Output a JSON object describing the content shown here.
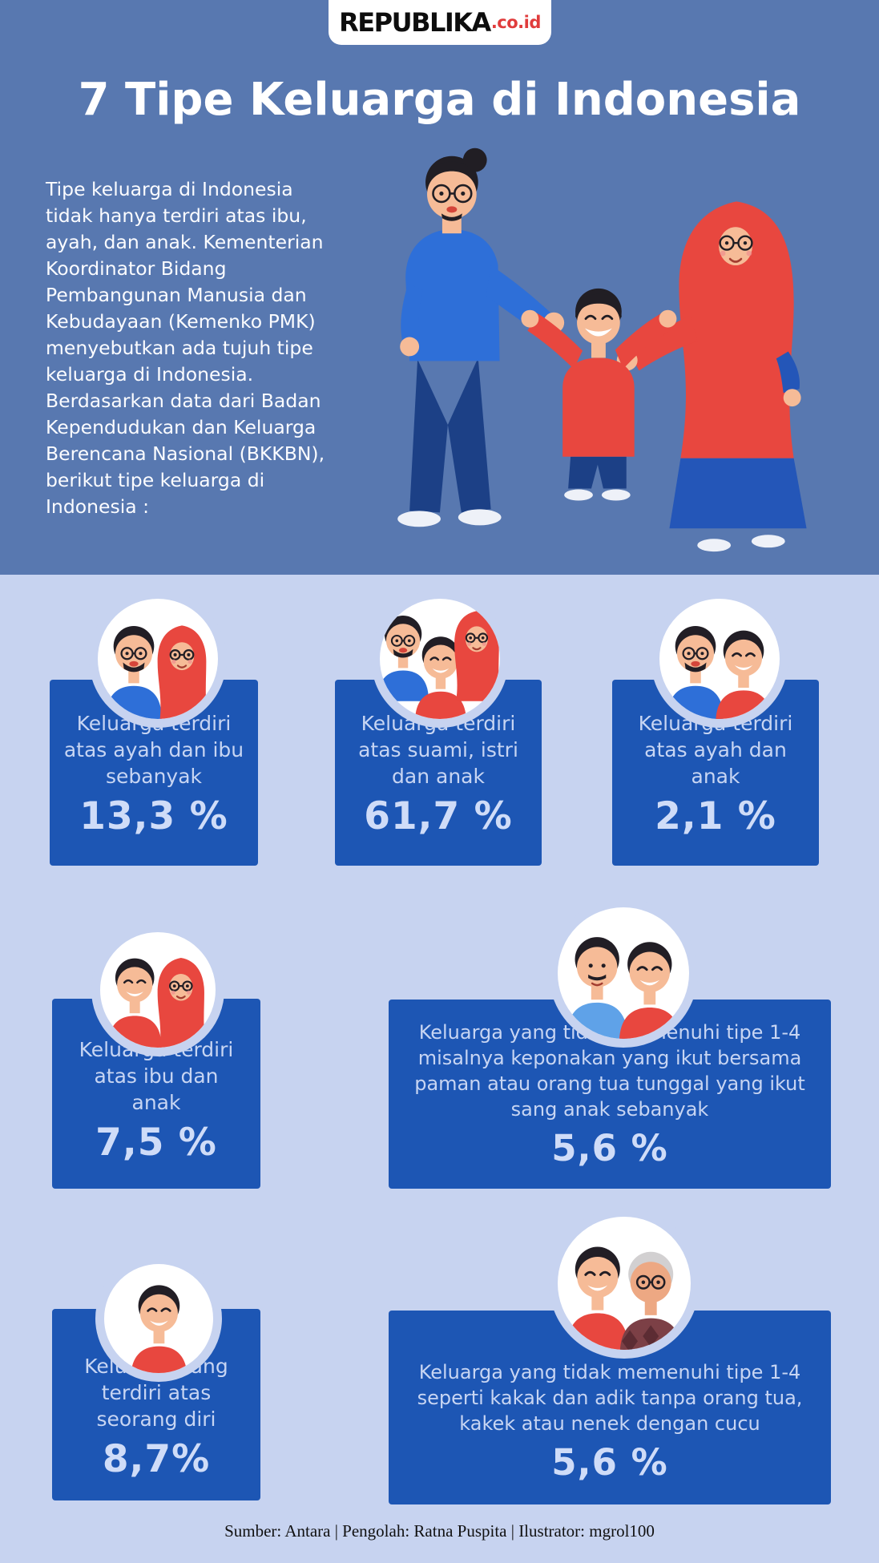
{
  "brand": {
    "name": "REPUBLIKA",
    "suffix": ".co.id"
  },
  "title": "7 Tipe Keluarga di Indonesia",
  "intro": "Tipe keluarga di Indonesia tidak hanya terdiri atas ibu, ayah, dan anak. Kementerian Koordinator Bidang Pembangunan Manusia dan Kebudayaan (Kemenko PMK) menyebutkan ada tujuh tipe keluarga di Indonesia. Berdasarkan data dari Badan Kependudukan dan Keluarga Berencana Nasional (BKKBN), berikut tipe keluarga di Indonesia :",
  "hero": {
    "persons": [
      "father-glasses",
      "child-arms-up",
      "mother-red-hijab"
    ]
  },
  "cards": [
    {
      "label": "Keluarga terdiri atas ayah dan ibu sebanyak",
      "value": "13,3 %",
      "persons": [
        "man",
        "woman-hijab"
      ]
    },
    {
      "label": "Keluarga terdiri atas suami, istri dan anak",
      "value": "61,7 %",
      "persons": [
        "man",
        "boy",
        "woman-hijab"
      ]
    },
    {
      "label": "Keluarga terdiri atas ayah dan anak",
      "value": "2,1 %",
      "persons": [
        "man",
        "boy"
      ]
    },
    {
      "label": "Keluarga terdiri atas ibu dan anak",
      "value": "7,5 %",
      "persons": [
        "boy",
        "woman-hijab"
      ]
    },
    {
      "label": "Keluarga yang tidak memenuhi tipe 1-4 misalnya keponakan yang ikut bersama paman atau orang tua tunggal yang ikut sang anak sebanyak",
      "value": "5,6 %",
      "persons": [
        "uncle",
        "boy"
      ]
    },
    {
      "label": "Keluarga yang terdiri atas seorang diri",
      "value": "8,7%",
      "persons": [
        "boy"
      ]
    },
    {
      "label": "Keluarga yang tidak memenuhi tipe 1-4 seperti kakak dan adik tanpa orang tua, kakek atau nenek dengan cucu",
      "value": "5,6 %",
      "persons": [
        "boy",
        "grandfather"
      ]
    }
  ],
  "footer": {
    "credits": "Sumber: Antara | Pengolah: Ratna Puspita | Ilustrator: mgrol100"
  },
  "colors": {
    "header_bg": "#5878b0",
    "body_bg": "#c7d3f0",
    "card_bg": "#1d56b4",
    "card_text": "#c7d5f3",
    "value_text": "#cfdcf8",
    "logo_red": "#e03c3c",
    "illustration_red": "#e8473f",
    "illustration_blue": "#2e6fd8",
    "illustration_navy": "#1c4086",
    "skin": "#f6bb97"
  },
  "chart_data": {
    "type": "table",
    "title": "7 Tipe Keluarga di Indonesia",
    "unit": "%",
    "categories": [
      "Keluarga terdiri atas ayah dan ibu",
      "Keluarga terdiri atas suami, istri dan anak",
      "Keluarga terdiri atas ayah dan anak",
      "Keluarga terdiri atas ibu dan anak",
      "Keluarga yang tidak memenuhi tipe 1-4 misalnya keponakan yang ikut bersama paman atau orang tua tunggal yang ikut sang anak",
      "Keluarga yang terdiri atas seorang diri",
      "Keluarga yang tidak memenuhi tipe 1-4 seperti kakak dan adik tanpa orang tua, kakek atau nenek dengan cucu"
    ],
    "values": [
      13.3,
      61.7,
      2.1,
      7.5,
      5.6,
      8.7,
      5.6
    ],
    "source": "Sumber: Antara | Pengolah: Ratna Puspita | Ilustrator: mgrol100"
  }
}
